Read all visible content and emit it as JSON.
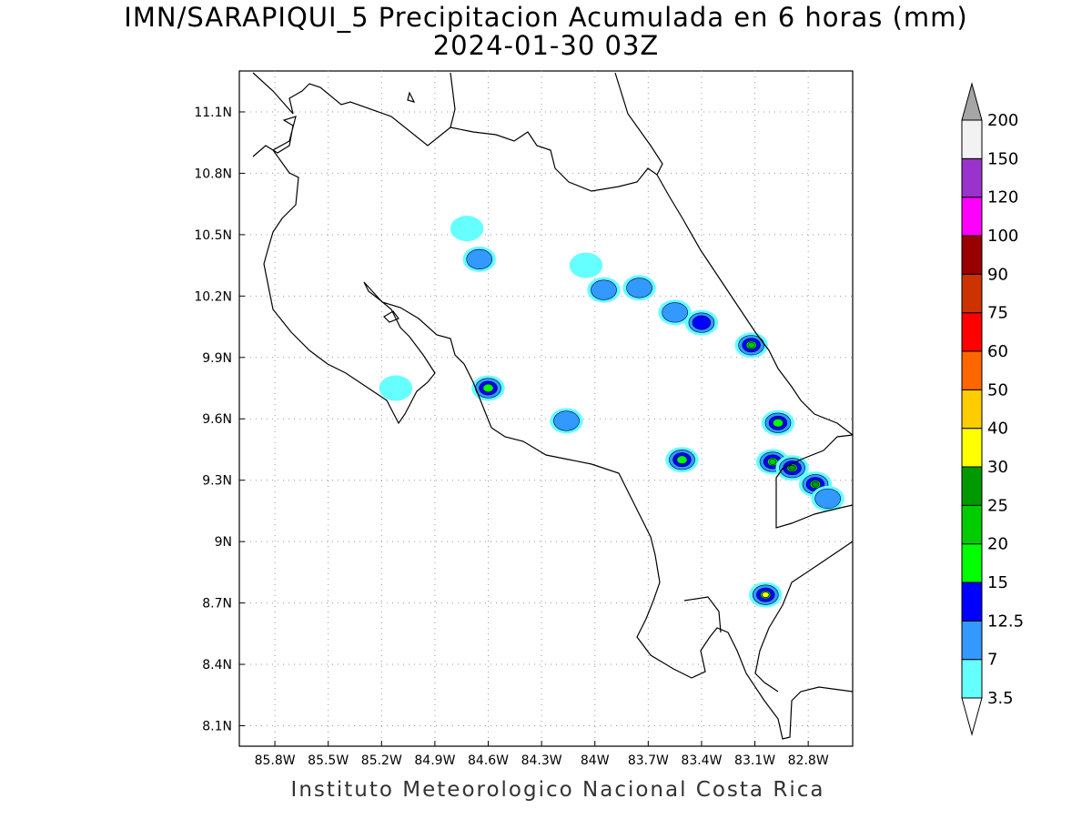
{
  "title": {
    "line1": "IMN/SARAPIQUI_5 Precipitacion Acumulada en 6 horas (mm)",
    "line2": "2024-01-30 03Z"
  },
  "footer": "Instituto Meteorologico Nacional Costa Rica",
  "map": {
    "lon_range": [
      -86.0,
      -82.55
    ],
    "lat_range": [
      8.0,
      11.3
    ],
    "x_ticks": [
      "85.8W",
      "85.5W",
      "85.2W",
      "84.9W",
      "84.6W",
      "84.3W",
      "84W",
      "83.7W",
      "83.4W",
      "83.1W",
      "82.8W"
    ],
    "x_tick_values": [
      -85.8,
      -85.5,
      -85.2,
      -84.9,
      -84.6,
      -84.3,
      -84.0,
      -83.7,
      -83.4,
      -83.1,
      -82.8
    ],
    "y_ticks": [
      "8.1N",
      "8.4N",
      "8.7N",
      "9N",
      "9.3N",
      "9.6N",
      "9.9N",
      "10.2N",
      "10.5N",
      "10.8N",
      "11.1N"
    ],
    "y_tick_values": [
      8.1,
      8.4,
      8.7,
      9.0,
      9.3,
      9.6,
      9.9,
      10.2,
      10.5,
      10.8,
      11.1
    ],
    "grid": "dotted"
  },
  "colorbar": {
    "levels": [
      "3.5",
      "7",
      "12.5",
      "15",
      "20",
      "25",
      "30",
      "40",
      "50",
      "60",
      "75",
      "90",
      "100",
      "120",
      "150",
      "200"
    ],
    "colors": [
      "#66ffff",
      "#3399ff",
      "#0000ff",
      "#00ff00",
      "#00cc00",
      "#009900",
      "#ffff00",
      "#ffcc00",
      "#ff6600",
      "#ff0000",
      "#cc3300",
      "#990000",
      "#ff00ff",
      "#9933cc",
      "#f2f2f2"
    ],
    "over_color": "#a6a6a6",
    "under_color": "#ffffff"
  },
  "precip_cells": [
    {
      "lon": -84.72,
      "lat": 10.53,
      "level": 0
    },
    {
      "lon": -84.65,
      "lat": 10.38,
      "level": 1
    },
    {
      "lon": -84.05,
      "lat": 10.35,
      "level": 0
    },
    {
      "lon": -83.95,
      "lat": 10.23,
      "level": 1
    },
    {
      "lon": -83.75,
      "lat": 10.24,
      "level": 1
    },
    {
      "lon": -83.55,
      "lat": 10.12,
      "level": 1
    },
    {
      "lon": -83.4,
      "lat": 10.07,
      "level": 2
    },
    {
      "lon": -83.12,
      "lat": 9.96,
      "level": 4
    },
    {
      "lon": -85.12,
      "lat": 9.75,
      "level": 0
    },
    {
      "lon": -84.6,
      "lat": 9.75,
      "level": 3
    },
    {
      "lon": -84.16,
      "lat": 9.59,
      "level": 1
    },
    {
      "lon": -83.51,
      "lat": 9.4,
      "level": 3
    },
    {
      "lon": -82.97,
      "lat": 9.58,
      "level": 3
    },
    {
      "lon": -83.0,
      "lat": 9.39,
      "level": 4
    },
    {
      "lon": -82.89,
      "lat": 9.36,
      "level": 5
    },
    {
      "lon": -82.76,
      "lat": 9.28,
      "level": 5
    },
    {
      "lon": -82.69,
      "lat": 9.21,
      "level": 1
    },
    {
      "lon": -83.04,
      "lat": 8.74,
      "level": 6
    }
  ]
}
